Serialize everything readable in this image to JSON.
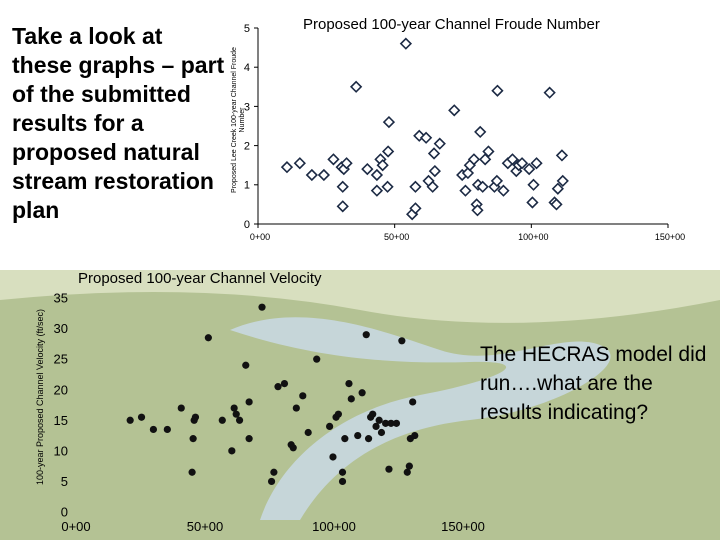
{
  "heading": "Take a look at these graphs – part of the submitted results for a proposed natural stream restoration plan",
  "callout": "The HECRAS model did run….what are the results indicating?",
  "colors": {
    "photo_sky": "#f2f5f0",
    "photo_grass": "#8aa060",
    "photo_water": "#c8d8e0",
    "photo_field": "#b8c48a",
    "froude_marker_fill": "#ffffff",
    "froude_marker_stroke": "#1c2a44",
    "velocity_marker": "#111111"
  },
  "chart_data": [
    {
      "type": "scatter",
      "title": "Proposed 100-year Channel Froude Number",
      "ylabel": "Proposed Lee Creek 100-year Channel Froude Number",
      "xlim": [
        0,
        150
      ],
      "ylim": [
        0,
        5
      ],
      "x_ticks": [
        0,
        50,
        100,
        150
      ],
      "x_tick_labels": [
        "0+00",
        "50+00",
        "100+00",
        "150+00"
      ],
      "y_ticks": [
        0,
        1,
        2,
        3,
        4,
        5
      ],
      "y_tick_labels": [
        "0",
        "1",
        "2",
        "3",
        "4",
        "5"
      ],
      "points": [
        [
          10.6,
          1.45
        ],
        [
          15.3,
          1.55
        ],
        [
          19.7,
          1.25
        ],
        [
          24.1,
          1.25
        ],
        [
          27.6,
          1.65
        ],
        [
          30.6,
          1.45
        ],
        [
          31.0,
          0.45
        ],
        [
          31.0,
          0.95
        ],
        [
          31.4,
          1.4
        ],
        [
          32.4,
          1.55
        ],
        [
          35.9,
          3.5
        ],
        [
          40.0,
          1.4
        ],
        [
          43.5,
          0.85
        ],
        [
          43.5,
          1.25
        ],
        [
          44.8,
          1.65
        ],
        [
          45.6,
          1.5
        ],
        [
          47.4,
          0.95
        ],
        [
          47.6,
          1.85
        ],
        [
          47.9,
          2.6
        ],
        [
          54.1,
          4.6
        ],
        [
          56.4,
          0.25
        ],
        [
          57.6,
          0.4
        ],
        [
          57.6,
          0.95
        ],
        [
          59.0,
          2.25
        ],
        [
          61.5,
          2.2
        ],
        [
          62.4,
          1.1
        ],
        [
          63.9,
          0.95
        ],
        [
          64.4,
          1.8
        ],
        [
          64.7,
          1.35
        ],
        [
          66.5,
          2.05
        ],
        [
          71.8,
          2.9
        ],
        [
          74.7,
          1.25
        ],
        [
          75.9,
          0.85
        ],
        [
          76.8,
          1.3
        ],
        [
          77.5,
          1.5
        ],
        [
          79.0,
          1.65
        ],
        [
          80.0,
          0.5
        ],
        [
          80.3,
          0.35
        ],
        [
          80.5,
          1.0
        ],
        [
          81.3,
          2.35
        ],
        [
          82.2,
          0.95
        ],
        [
          83.1,
          1.65
        ],
        [
          84.3,
          1.85
        ],
        [
          86.5,
          0.95
        ],
        [
          87.4,
          1.1
        ],
        [
          87.6,
          3.4
        ],
        [
          89.8,
          0.85
        ],
        [
          91.4,
          1.55
        ],
        [
          93.1,
          1.65
        ],
        [
          94.5,
          1.35
        ],
        [
          95.4,
          1.5
        ],
        [
          96.6,
          1.55
        ],
        [
          99.2,
          1.4
        ],
        [
          100.4,
          0.55
        ],
        [
          100.8,
          1.0
        ],
        [
          101.9,
          1.55
        ],
        [
          106.7,
          3.35
        ],
        [
          108.5,
          0.55
        ],
        [
          109.2,
          0.5
        ],
        [
          109.7,
          0.9
        ],
        [
          111.2,
          1.75
        ],
        [
          111.5,
          1.1
        ]
      ]
    },
    {
      "type": "scatter",
      "title": "Proposed 100-year Channel Velocity",
      "ylabel": "100-year Proposed Channel Velocity (ft/sec)",
      "xlim": [
        0,
        150
      ],
      "ylim": [
        0,
        35
      ],
      "x_ticks": [
        0,
        50,
        100,
        150
      ],
      "x_tick_labels": [
        "0+00",
        "50+00",
        "100+00",
        "150+00"
      ],
      "y_ticks": [
        0,
        5,
        10,
        15,
        20,
        25,
        30,
        35
      ],
      "y_tick_labels": [
        "0",
        "5",
        "10",
        "15",
        "20",
        "25",
        "30",
        "35"
      ],
      "points": [
        [
          21.0,
          15.0
        ],
        [
          25.4,
          15.5
        ],
        [
          30.0,
          13.5
        ],
        [
          35.4,
          13.5
        ],
        [
          40.8,
          17.0
        ],
        [
          45.0,
          6.5
        ],
        [
          45.4,
          12.0
        ],
        [
          45.8,
          15.0
        ],
        [
          46.3,
          15.5
        ],
        [
          51.3,
          28.5
        ],
        [
          56.7,
          15.0
        ],
        [
          60.4,
          10.0
        ],
        [
          61.3,
          17.0
        ],
        [
          62.1,
          16.0
        ],
        [
          63.4,
          15.0
        ],
        [
          65.8,
          24.0
        ],
        [
          67.1,
          12.0
        ],
        [
          67.1,
          18.0
        ],
        [
          72.1,
          33.5
        ],
        [
          75.8,
          5.0
        ],
        [
          76.7,
          6.5
        ],
        [
          78.3,
          20.5
        ],
        [
          80.8,
          21.0
        ],
        [
          83.4,
          11.0
        ],
        [
          84.2,
          10.5
        ],
        [
          85.4,
          17.0
        ],
        [
          87.9,
          19.0
        ],
        [
          90.0,
          13.0
        ],
        [
          93.3,
          25.0
        ],
        [
          98.3,
          14.0
        ],
        [
          99.6,
          9.0
        ],
        [
          100.8,
          15.5
        ],
        [
          101.7,
          16.0
        ],
        [
          103.3,
          5.0
        ],
        [
          103.3,
          6.5
        ],
        [
          104.2,
          12.0
        ],
        [
          105.8,
          21.0
        ],
        [
          106.7,
          18.5
        ],
        [
          109.2,
          12.5
        ],
        [
          110.9,
          19.5
        ],
        [
          112.5,
          29.0
        ],
        [
          113.4,
          12.0
        ],
        [
          114.2,
          15.5
        ],
        [
          115.0,
          16.0
        ],
        [
          116.3,
          14.0
        ],
        [
          117.5,
          15.0
        ],
        [
          118.4,
          13.0
        ],
        [
          120.0,
          14.5
        ],
        [
          121.3,
          7.0
        ],
        [
          122.1,
          14.5
        ],
        [
          124.2,
          14.5
        ],
        [
          126.3,
          28.0
        ],
        [
          128.4,
          6.5
        ],
        [
          129.2,
          7.5
        ],
        [
          129.6,
          12.0
        ],
        [
          130.5,
          18.0
        ],
        [
          131.3,
          12.5
        ]
      ]
    }
  ]
}
